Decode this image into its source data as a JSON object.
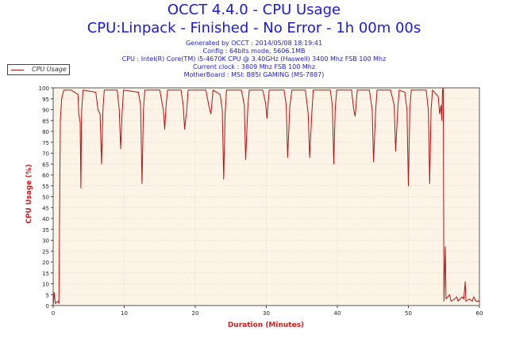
{
  "header": {
    "title": "OCCT 4.4.0 - CPU Usage",
    "subtitle": "CPU:Linpack - Finished - No Error - 1h 00m 00s",
    "info_lines": [
      "Generated by OCCT : 2014/05/08 18:19:41",
      "Config : 64bits mode, 5606.1MB",
      "CPU : Intel(R) Core(TM) i5-4670K CPU @ 3.40GHz (Haswell) 3400 Mhz FSB 100 Mhz",
      "Current clock : 3809 Mhz FSB 100 Mhz",
      "MotherBoard : MSI: B85I GAMING (MS-7887)"
    ]
  },
  "legend": {
    "label": "CPU Usage"
  },
  "colors": {
    "line": "#b01515",
    "plot_bg": "#fdf3e6",
    "axis_text": "#cc2020",
    "title": "#1a1ad8"
  },
  "chart_data": {
    "type": "line",
    "xlabel": "Duration (Minutes)",
    "ylabel": "CPU Usage (%)",
    "xlim": [
      0,
      60
    ],
    "ylim": [
      0,
      100
    ],
    "x_ticks": [
      0,
      10,
      20,
      30,
      40,
      50,
      60
    ],
    "y_ticks": [
      0,
      5,
      10,
      15,
      20,
      25,
      30,
      35,
      40,
      45,
      50,
      55,
      60,
      65,
      70,
      75,
      80,
      85,
      90,
      95,
      100
    ],
    "grid": true,
    "legend_position": "top-left",
    "series": [
      {
        "name": "CPU Usage",
        "points": [
          [
            0,
            0
          ],
          [
            0.15,
            6
          ],
          [
            0.3,
            1
          ],
          [
            0.7,
            2
          ],
          [
            0.8,
            1
          ],
          [
            1.0,
            85
          ],
          [
            1.2,
            95
          ],
          [
            1.5,
            99
          ],
          [
            2.5,
            99
          ],
          [
            3.5,
            97
          ],
          [
            3.6,
            88
          ],
          [
            3.8,
            84
          ],
          [
            3.9,
            54
          ],
          [
            4.0,
            89
          ],
          [
            4.2,
            99
          ],
          [
            6.0,
            98
          ],
          [
            6.3,
            90
          ],
          [
            6.6,
            88
          ],
          [
            6.8,
            65
          ],
          [
            7.0,
            90
          ],
          [
            7.2,
            99
          ],
          [
            9.0,
            99
          ],
          [
            9.3,
            90
          ],
          [
            9.5,
            72
          ],
          [
            9.7,
            88
          ],
          [
            9.9,
            99
          ],
          [
            12.0,
            98
          ],
          [
            12.3,
            92
          ],
          [
            12.5,
            56
          ],
          [
            12.7,
            90
          ],
          [
            12.9,
            99
          ],
          [
            15.0,
            99
          ],
          [
            15.5,
            90
          ],
          [
            15.7,
            81
          ],
          [
            15.9,
            92
          ],
          [
            16.1,
            99
          ],
          [
            18.0,
            99
          ],
          [
            18.3,
            92
          ],
          [
            18.5,
            81
          ],
          [
            18.8,
            90
          ],
          [
            19.0,
            99
          ],
          [
            21.5,
            99
          ],
          [
            21.9,
            92
          ],
          [
            22.2,
            88
          ],
          [
            22.5,
            99
          ],
          [
            23.5,
            97
          ],
          [
            23.8,
            90
          ],
          [
            24.0,
            58
          ],
          [
            24.2,
            88
          ],
          [
            24.4,
            99
          ],
          [
            26.5,
            99
          ],
          [
            26.9,
            92
          ],
          [
            27.1,
            67
          ],
          [
            27.4,
            91
          ],
          [
            27.6,
            99
          ],
          [
            29.5,
            99
          ],
          [
            29.9,
            93
          ],
          [
            30.1,
            86
          ],
          [
            30.4,
            99
          ],
          [
            32.5,
            99
          ],
          [
            32.8,
            92
          ],
          [
            33.0,
            68
          ],
          [
            33.3,
            91
          ],
          [
            33.6,
            99
          ],
          [
            35.5,
            99
          ],
          [
            35.9,
            88
          ],
          [
            36.1,
            68
          ],
          [
            36.4,
            88
          ],
          [
            36.6,
            99
          ],
          [
            39.0,
            99
          ],
          [
            39.3,
            92
          ],
          [
            39.5,
            65
          ],
          [
            39.7,
            90
          ],
          [
            39.9,
            99
          ],
          [
            42.0,
            99
          ],
          [
            42.3,
            90
          ],
          [
            42.5,
            87
          ],
          [
            42.8,
            99
          ],
          [
            44.5,
            99
          ],
          [
            44.9,
            90
          ],
          [
            45.1,
            66
          ],
          [
            45.4,
            90
          ],
          [
            45.6,
            99
          ],
          [
            47.5,
            99
          ],
          [
            48.0,
            92
          ],
          [
            48.2,
            71
          ],
          [
            48.5,
            90
          ],
          [
            48.7,
            99
          ],
          [
            49.5,
            98
          ],
          [
            49.8,
            90
          ],
          [
            50.0,
            55
          ],
          [
            50.2,
            90
          ],
          [
            50.4,
            99
          ],
          [
            52.5,
            99
          ],
          [
            52.8,
            90
          ],
          [
            53.0,
            56
          ],
          [
            53.2,
            90
          ],
          [
            53.4,
            99
          ],
          [
            54.2,
            96
          ],
          [
            54.4,
            88
          ],
          [
            54.6,
            92
          ],
          [
            54.7,
            85
          ],
          [
            54.8,
            99
          ],
          [
            54.9,
            100
          ],
          [
            55.0,
            2
          ],
          [
            55.2,
            27
          ],
          [
            55.3,
            3
          ],
          [
            55.8,
            5
          ],
          [
            56.0,
            2
          ],
          [
            56.5,
            3
          ],
          [
            56.8,
            4
          ],
          [
            57.0,
            2
          ],
          [
            57.6,
            4
          ],
          [
            57.8,
            3
          ],
          [
            58.0,
            11
          ],
          [
            58.1,
            2
          ],
          [
            58.6,
            3
          ],
          [
            59.0,
            2
          ],
          [
            59.2,
            4
          ],
          [
            59.5,
            2
          ],
          [
            60.0,
            2
          ]
        ]
      }
    ]
  }
}
